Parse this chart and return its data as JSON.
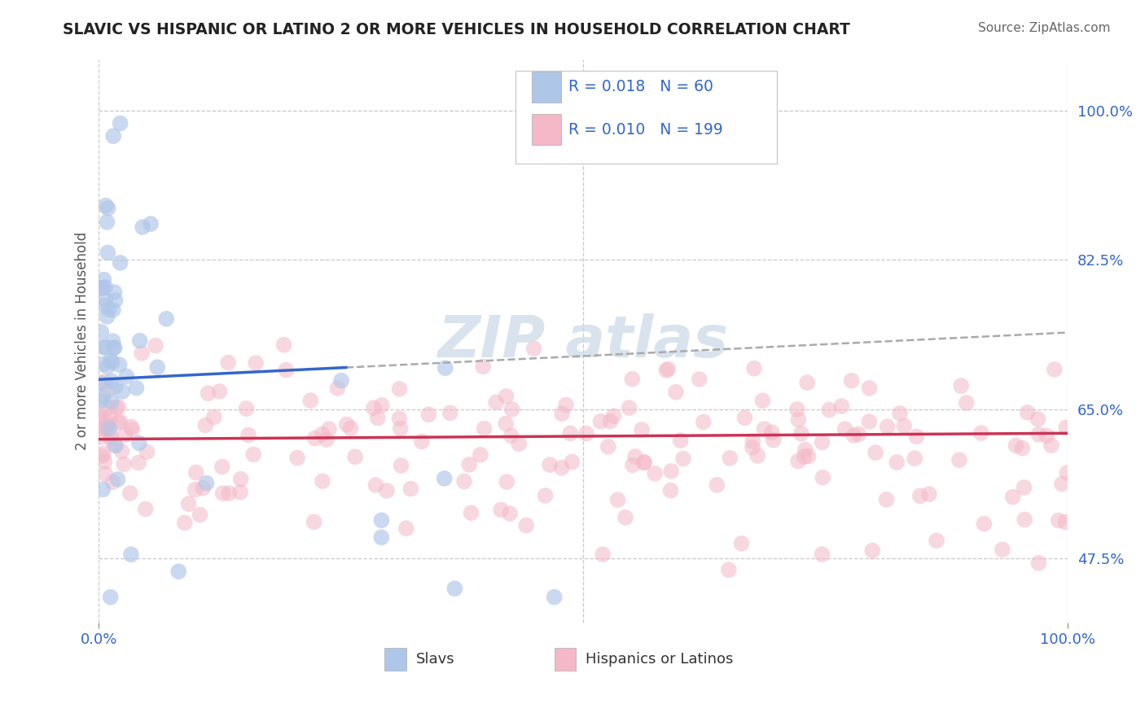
{
  "title": "SLAVIC VS HISPANIC OR LATINO 2 OR MORE VEHICLES IN HOUSEHOLD CORRELATION CHART",
  "source": "Source: ZipAtlas.com",
  "ylabel": "2 or more Vehicles in Household",
  "xlim": [
    0.0,
    1.0
  ],
  "ylim": [
    0.4,
    1.06
  ],
  "ytick_positions": [
    0.475,
    0.65,
    0.825,
    1.0
  ],
  "ytick_labels": [
    "47.5%",
    "65.0%",
    "82.5%",
    "100.0%"
  ],
  "xtick_positions": [
    0.0,
    1.0
  ],
  "xtick_labels": [
    "0.0%",
    "100.0%"
  ],
  "legend_r_slavs": "0.018",
  "legend_n_slavs": "60",
  "legend_r_hispanics": "0.010",
  "legend_n_hispanics": "199",
  "slavs_color": "#aec6e8",
  "hispanics_color": "#f4b8c8",
  "trend_slavs_color": "#3366cc",
  "trend_hispanics_color": "#cc3355",
  "trend_ext_color": "#aaaaaa",
  "background_color": "#ffffff",
  "grid_color": "#c8c8c8",
  "watermark_color": "#c8d8e8",
  "title_color": "#222222",
  "source_color": "#666666",
  "tick_color": "#3366cc",
  "ylabel_color": "#555555"
}
